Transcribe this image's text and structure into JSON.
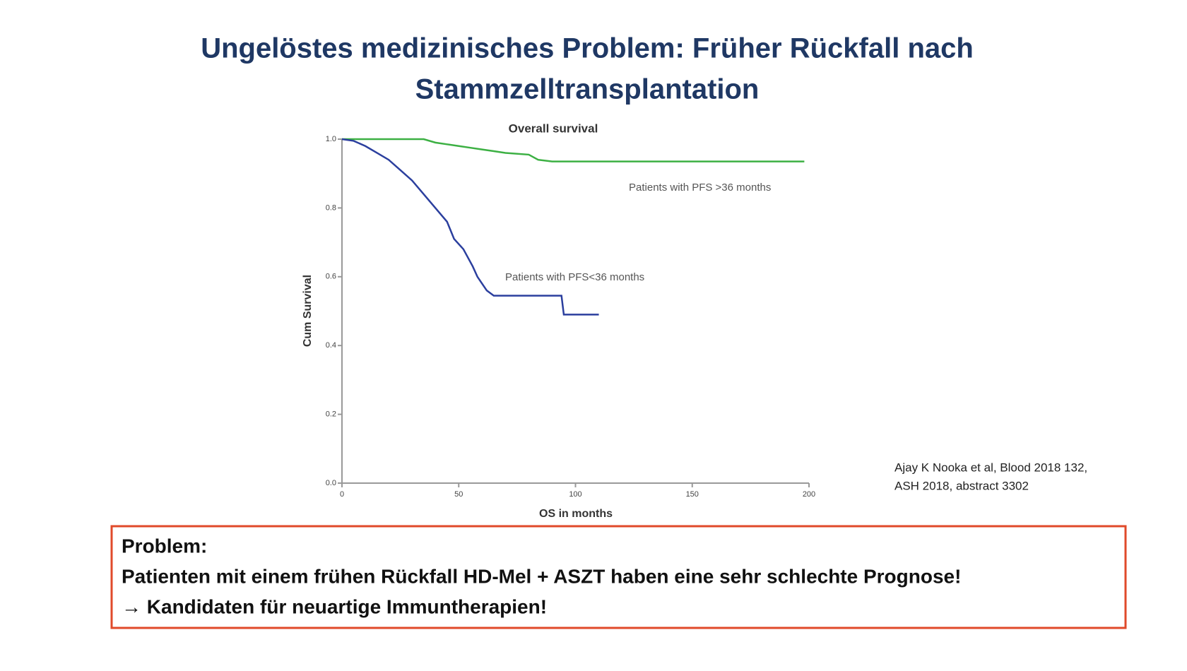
{
  "title": [
    "Ungelöstes medizinisches Problem: Früher Rückfall nach",
    "Stammzelltransplantation"
  ],
  "chart_data": {
    "type": "line",
    "title": "Overall survival",
    "x_label": "OS in months",
    "y_label": "Cum Survival",
    "xlim": [
      0,
      200
    ],
    "xticks": [
      0,
      50,
      100,
      150,
      200
    ],
    "ylim": [
      0,
      1
    ],
    "yticks": [
      {
        "value": 0,
        "label": "0.0"
      },
      0.2,
      0.4,
      0.6,
      0.8,
      {
        "value": 1,
        "label": "1.0"
      }
    ],
    "series": [
      {
        "name": "Patients with PFS >36 months",
        "color": "#3cb043",
        "x": [
          0,
          35,
          40,
          45,
          50,
          55,
          60,
          65,
          70,
          80,
          84,
          90,
          198
        ],
        "values": [
          1.0,
          1.0,
          0.99,
          0.985,
          0.98,
          0.975,
          0.97,
          0.965,
          0.96,
          0.955,
          0.94,
          0.935,
          0.935
        ]
      },
      {
        "name": "Patients with PFS<36 months",
        "color": "#2b3f9e",
        "x": [
          0,
          5,
          10,
          15,
          20,
          25,
          30,
          35,
          40,
          45,
          48,
          52,
          56,
          58,
          60,
          62,
          65,
          94,
          95,
          110
        ],
        "values": [
          1.0,
          0.995,
          0.98,
          0.96,
          0.94,
          0.91,
          0.88,
          0.84,
          0.8,
          0.76,
          0.71,
          0.68,
          0.63,
          0.6,
          0.58,
          0.56,
          0.545,
          0.545,
          0.49,
          0.49
        ]
      }
    ]
  },
  "citation": [
    "Ajay K Nooka et al, Blood 2018 132,",
    "ASH 2018, abstract 3302"
  ],
  "problem_box": {
    "heading": "Problem:",
    "lines": [
      "Patienten mit einem frühen Rückfall HD-Mel + ASZT haben eine sehr schlechte Prognose!",
      "→ Kandidaten für neuartige Immuntherapien!"
    ]
  }
}
